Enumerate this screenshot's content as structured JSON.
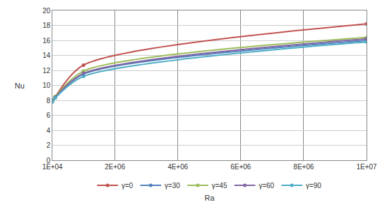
{
  "chart_data": {
    "type": "line",
    "x_label": "Ra",
    "y_label": "Nu",
    "x": [
      10000,
      100000,
      1000000,
      10000000
    ],
    "series": [
      {
        "name": "γ=0",
        "color": "#c0504d",
        "values": [
          8.0,
          8.5,
          12.7,
          18.2
        ]
      },
      {
        "name": "γ=30",
        "color": "#4f81bd",
        "values": [
          8.0,
          8.4,
          11.5,
          16.0
        ]
      },
      {
        "name": "γ=45",
        "color": "#9bbb59",
        "values": [
          8.0,
          8.5,
          11.9,
          16.4
        ]
      },
      {
        "name": "γ=60",
        "color": "#8064a2",
        "values": [
          7.9,
          8.4,
          11.6,
          16.2
        ]
      },
      {
        "name": "γ=90",
        "color": "#4bacc6",
        "values": [
          7.8,
          8.3,
          11.2,
          15.8
        ]
      }
    ],
    "xlim": [
      10000,
      10000000
    ],
    "xticks": [
      {
        "value": 10000,
        "label": "1E+04"
      },
      {
        "value": 2000000,
        "label": "2E+06"
      },
      {
        "value": 4000000,
        "label": "4E+06"
      },
      {
        "value": 6000000,
        "label": "6E+06"
      },
      {
        "value": 8000000,
        "label": "8E+06"
      },
      {
        "value": 10000000,
        "label": "1E+07"
      }
    ],
    "ylim": [
      0,
      20
    ],
    "yticks": [
      0,
      2,
      4,
      6,
      8,
      10,
      12,
      14,
      16,
      18,
      20
    ],
    "grid": true,
    "legend": "bottom",
    "marker": "circle"
  }
}
